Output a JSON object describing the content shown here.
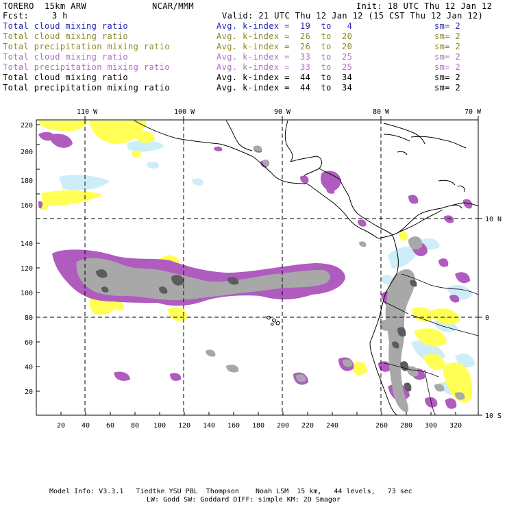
{
  "header": {
    "model": "TORERO  15km ARW",
    "center": "NCAR/MMM",
    "init": "Init: 18 UTC Thu 12 Jan 12",
    "fcst_label": "Fcst:",
    "fcst_value": "3 h",
    "valid": "Valid: 21 UTC Thu 12 Jan 12 (15 CST Thu 12 Jan 12)"
  },
  "legend": [
    {
      "field": "Total cloud mixing ratio",
      "kindex": "Avg. k-index =  19  to   4",
      "sm": "sm= 2",
      "color": "#2222bb"
    },
    {
      "field": "Total cloud mixing ratio",
      "kindex": "Avg. k-index =  26  to  20",
      "sm": "sm= 2",
      "color": "#8a8a22"
    },
    {
      "field": "Total precipitation mixing ratio",
      "kindex": "Avg. k-index =  26  to  20",
      "sm": "sm= 2",
      "color": "#8a8a22"
    },
    {
      "field": "Total cloud mixing ratio",
      "kindex": "Avg. k-index =  33  to  25",
      "sm": "sm= 2",
      "color": "#b070c0"
    },
    {
      "field": "Total precipitation mixing ratio",
      "kindex": "Avg. k-index =  33  to  25",
      "sm": "sm= 2",
      "color": "#b070c0"
    },
    {
      "field": "Total cloud mixing ratio",
      "kindex": "Avg. k-index =  44  to  34",
      "sm": "sm= 2",
      "color": "#000000"
    },
    {
      "field": "Total precipitation mixing ratio",
      "kindex": "Avg. k-index =  44  to  34",
      "sm": "sm= 2",
      "color": "#000000"
    }
  ],
  "map": {
    "top_labels": [
      "110 W",
      "100 W",
      "90 W",
      "80 W",
      "70 W"
    ],
    "right_labels": [
      "10 N",
      "0",
      "10 S"
    ],
    "y_ticks": [
      "20",
      "40",
      "60",
      "80",
      "100",
      "120",
      "140",
      "160",
      "180",
      "200",
      "220"
    ],
    "x_ticks": [
      "20",
      "40",
      "60",
      "80",
      "100",
      "120",
      "140",
      "160",
      "180",
      "200",
      "220",
      "240",
      "260",
      "280",
      "300",
      "320"
    ],
    "colors": {
      "yellow": "#ffff55",
      "lightblue": "#cdeef8",
      "purple": "#b05cbf",
      "gray": "#a8a8a8",
      "darkgray": "#5c5c5c",
      "coast": "#000000"
    }
  },
  "footer": {
    "line1": "Model Info: V3.3.1   Tiedtke YSU PBL  Thompson    Noah LSM  15 km,   44 levels,   73 sec",
    "line2": "LW: Godd SW: Goddard DIFF: simple KM: 2D Smagor"
  }
}
